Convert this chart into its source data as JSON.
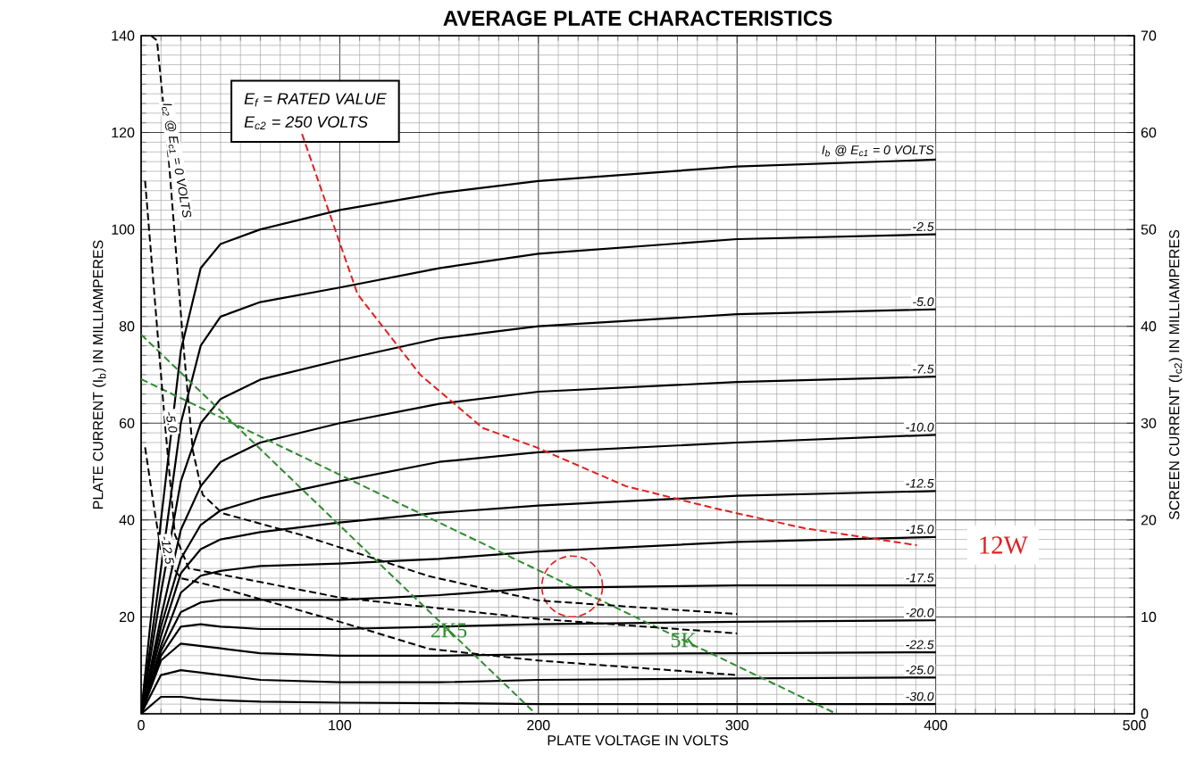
{
  "chart_data": {
    "type": "line",
    "title": "AVERAGE PLATE CHARACTERISTICS",
    "xlabel": "PLATE VOLTAGE IN VOLTS",
    "ylabel": "PLATE CURRENT (I$_{b}$) IN MILLIAMPERES",
    "y2label": "SCREEN CURRENT (I$_{c2}$) IN MILLIAMPERES",
    "annotations": [
      "E$_{f}$ = RATED VALUE",
      "E$_{c2}$ = 250 VOLTS"
    ],
    "xlim": [
      0,
      500
    ],
    "ylim": [
      0,
      140
    ],
    "y2lim": [
      0,
      70
    ],
    "xticks": [
      0,
      100,
      200,
      300,
      400,
      500
    ],
    "yticks": [
      {
        "value": 0,
        "label": null
      },
      20,
      40,
      60,
      80,
      100,
      120,
      140
    ],
    "y2ticks": [
      0,
      10,
      20,
      30,
      40,
      50,
      60,
      70
    ],
    "grid": true,
    "series": [
      {
        "name": "I$_{b}$ @ E$_{c1}$ = 0 VOLTS",
        "color": "#000000",
        "line_style": "solid",
        "x": [
          0,
          10,
          20,
          30,
          40,
          60,
          100,
          150,
          200,
          300,
          400
        ],
        "values": [
          0,
          40,
          75,
          92,
          97,
          100,
          104,
          107.5,
          110,
          113,
          114.4
        ]
      },
      {
        "name": "-2.5",
        "color": "#000000",
        "line_style": "solid",
        "x": [
          0,
          10,
          20,
          30,
          40,
          60,
          100,
          150,
          200,
          300,
          400
        ],
        "values": [
          0,
          30,
          60,
          76,
          82,
          85,
          88,
          92,
          95,
          98,
          99
        ]
      },
      {
        "name": "-5.0",
        "color": "#000000",
        "line_style": "solid",
        "x": [
          0,
          10,
          20,
          30,
          40,
          60,
          100,
          150,
          200,
          300,
          400
        ],
        "values": [
          0,
          25,
          48,
          60,
          65,
          69,
          73,
          77.5,
          80,
          82.5,
          83.5
        ]
      },
      {
        "name": "-7.5",
        "color": "#000000",
        "line_style": "solid",
        "x": [
          0,
          10,
          20,
          30,
          40,
          60,
          100,
          150,
          200,
          300,
          400
        ],
        "values": [
          0,
          20,
          38,
          47,
          52,
          56,
          60,
          64,
          66.5,
          68.5,
          69.6
        ]
      },
      {
        "name": "-10.0",
        "color": "#000000",
        "line_style": "solid",
        "x": [
          0,
          10,
          20,
          30,
          40,
          60,
          100,
          150,
          200,
          300,
          400
        ],
        "values": [
          0,
          18,
          32,
          39,
          42,
          44.5,
          48,
          52,
          54,
          56,
          57.6
        ]
      },
      {
        "name": "-12.5",
        "color": "#000000",
        "line_style": "solid",
        "x": [
          0,
          10,
          20,
          30,
          40,
          60,
          100,
          150,
          200,
          300,
          400
        ],
        "values": [
          0,
          16,
          29,
          34,
          36,
          37.5,
          39.5,
          41.5,
          43,
          45,
          46
        ]
      },
      {
        "name": "-15.0",
        "color": "#000000",
        "line_style": "solid",
        "x": [
          0,
          10,
          20,
          30,
          40,
          60,
          100,
          150,
          200,
          300,
          400
        ],
        "values": [
          0,
          14,
          25,
          28.5,
          29.5,
          30.5,
          31,
          32,
          33.5,
          35.5,
          36.5
        ]
      },
      {
        "name": "-17.5",
        "color": "#000000",
        "line_style": "solid",
        "x": [
          0,
          10,
          20,
          30,
          40,
          60,
          100,
          150,
          200,
          300,
          400
        ],
        "values": [
          0,
          13,
          21,
          23,
          23.5,
          23.5,
          23.5,
          24.5,
          26,
          26.5,
          26.5
        ]
      },
      {
        "name": "-20.0",
        "color": "#000000",
        "line_style": "solid",
        "x": [
          0,
          10,
          20,
          30,
          40,
          60,
          100,
          150,
          200,
          300,
          400
        ],
        "values": [
          0,
          12,
          18,
          18.5,
          18,
          17.5,
          17.5,
          18,
          18.5,
          19,
          19.3
        ]
      },
      {
        "name": "-22.5",
        "color": "#000000",
        "line_style": "solid",
        "x": [
          0,
          10,
          20,
          30,
          40,
          60,
          100,
          150,
          200,
          300,
          400
        ],
        "values": [
          0,
          11,
          14.5,
          14,
          13.5,
          12.5,
          12,
          12,
          12.3,
          12.5,
          12.7
        ]
      },
      {
        "name": "-25.0",
        "color": "#000000",
        "line_style": "solid",
        "x": [
          0,
          10,
          20,
          30,
          40,
          60,
          100,
          150,
          200,
          300,
          400
        ],
        "values": [
          0,
          8,
          9,
          8.5,
          8,
          7,
          6.5,
          6.5,
          7,
          7.3,
          7.5
        ]
      },
      {
        "name": "-30.0",
        "color": "#000000",
        "line_style": "solid",
        "x": [
          0,
          10,
          20,
          30,
          40,
          60,
          100,
          150,
          200,
          300,
          400
        ],
        "values": [
          0,
          3.5,
          3.5,
          3,
          2.8,
          2.5,
          2.3,
          2.2,
          2,
          2,
          2
        ]
      },
      {
        "name": "I$_{c2}$ @ E$_{c1}$ = 0 VOLTS",
        "color": "#000000",
        "line_style": "dashed",
        "axis": "y2",
        "x": [
          5,
          8,
          14,
          21,
          26,
          31,
          41,
          80,
          145,
          200,
          300
        ],
        "values": [
          70,
          69.5,
          57,
          38.7,
          27.2,
          22.6,
          20.7,
          18.5,
          14.2,
          11.7,
          10.3
        ]
      },
      {
        "name": "-5.0",
        "color": "#000000",
        "line_style": "dashed",
        "axis": "y2",
        "x": [
          2,
          8,
          12,
          17,
          24,
          50,
          100,
          145,
          200,
          300
        ],
        "values": [
          55,
          40,
          30,
          18.5,
          15,
          14,
          12,
          11,
          9.8,
          8.3
        ]
      },
      {
        "name": "-12.5",
        "color": "#000000",
        "line_style": "dashed",
        "axis": "y2",
        "x": [
          2,
          6,
          10,
          20,
          40,
          100,
          145,
          200,
          300
        ],
        "values": [
          27.5,
          22,
          16.8,
          14,
          13,
          9.5,
          6.7,
          5.5,
          4
        ]
      },
      {
        "name": "12W",
        "color": "#e02020",
        "line_style": "dashed",
        "x": [
          81,
          109,
          140.5,
          172,
          199,
          244,
          289,
          334,
          390.5
        ],
        "values": [
          119.7,
          86.6,
          70,
          59,
          55,
          47,
          42.4,
          38.3,
          34.8
        ]
      },
      {
        "name": "2K5",
        "color": "#2e8b2e",
        "line_style": "dashed",
        "x": [
          0,
          198.6
        ],
        "values": [
          78.3,
          0
        ]
      },
      {
        "name": "5K",
        "color": "#2e8b2e",
        "line_style": "dashed",
        "x": [
          0,
          350
        ],
        "values": [
          69.1,
          0
        ]
      },
      {
        "type": "scatter",
        "marker": "circle",
        "color": "#e02020",
        "line_style": "dashed",
        "x": [
          217
        ],
        "values": [
          26.3
        ]
      }
    ]
  }
}
